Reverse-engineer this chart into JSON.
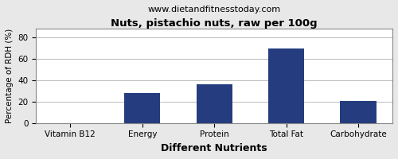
{
  "title": "Nuts, pistachio nuts, raw per 100g",
  "subtitle": "www.dietandfitnesstoday.com",
  "xlabel": "Different Nutrients",
  "ylabel": "Percentage of RDH (%)",
  "categories": [
    "Vitamin B12",
    "Energy",
    "Protein",
    "Total Fat",
    "Carbohydrate"
  ],
  "values": [
    0,
    28,
    36,
    70,
    21
  ],
  "bar_color": "#253d7f",
  "ylim": [
    0,
    88
  ],
  "yticks": [
    0,
    20,
    40,
    60,
    80
  ],
  "background_color": "#e8e8e8",
  "plot_bg_color": "#ffffff",
  "title_fontsize": 9.5,
  "subtitle_fontsize": 8,
  "xlabel_fontsize": 9,
  "ylabel_fontsize": 7.5,
  "tick_fontsize": 7.5
}
